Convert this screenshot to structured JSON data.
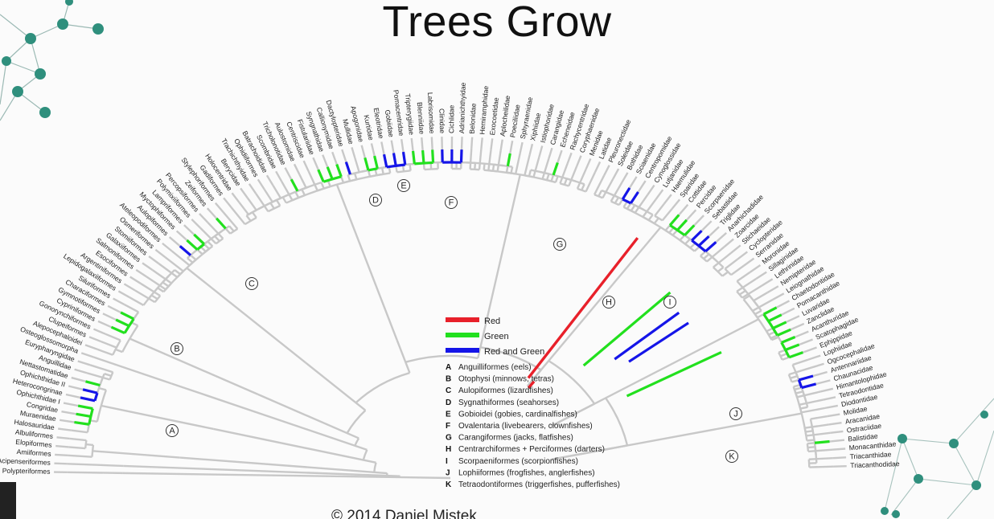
{
  "title": "Trees Grow",
  "footer": "© 2014 Daniel Mistek",
  "tree": {
    "leaves": [
      "Polypteriformes",
      "Acipenseriformes",
      "Amiiformes",
      "Elopiformes",
      "Albuliformes",
      "Halosauridae",
      "Muraenidae",
      "Congridae",
      "Ophichthidae I",
      "Heterocongrinae",
      "Ophichthidae II",
      "Nettastomatidae",
      "Anguillidae",
      "Eurypharyngidae",
      "Osteoglossomorpha",
      "Alepocephaloidei",
      "Clupeiformes",
      "Gonorynchiformes",
      "Cypriniformes",
      "Gymnotiformes",
      "Characiformes",
      "Siluriformes",
      "Lepidogalaxiiformes",
      "Argentiniformes",
      "Esociformes",
      "Salmoniformes",
      "Galaxiiformes",
      "Stomiiformes",
      "Osmeriformes",
      "Ateleopodiformes",
      "Aulopiformes",
      "Myctophiformes",
      "Lampriformes",
      "Polymixiiformes",
      "Percopsiformes",
      "Zeiformes",
      "Stylephoriformes",
      "Gadiformes",
      "Holocentridae",
      "Berycidae",
      "Trachichthyidae",
      "Ophidiiformes",
      "Batrachoididae",
      "Scombridae",
      "Tricholonotidae",
      "Aulostomidae",
      "Centriscidae",
      "Fistulariidae",
      "Syngnathidae",
      "Callionymidae",
      "Dactylopteridae",
      "Mullidae",
      "Apogonidae",
      "Kurtidae",
      "Eleotridae",
      "Gobiidae",
      "Pomacentridae",
      "Tripterygiidae",
      "Blenniidae",
      "Labrisomidae",
      "Clinidae",
      "Cichlidae",
      "Adrianichthyidae",
      "Belonidae",
      "Hemiramphidae",
      "Exocoetidae",
      "Aplocheilidae",
      "Poeciliidae",
      "Sphyraenidae",
      "Xiphiidae",
      "Istiophoridae",
      "Carangidae",
      "Echeneidae",
      "Rachycentridae",
      "Coryphaenidae",
      "Menidae",
      "Latidae",
      "Pleuronectidae",
      "Soleidae",
      "Bothidae",
      "Sciaenidae",
      "Centropomidae",
      "Cynoglossidae",
      "Lutjanidae",
      "Haemulidae",
      "Sparidae",
      "Cottidae",
      "Percidae",
      "Scorpaenidae",
      "Sebastidae",
      "Triglidae",
      "Anarhichadidae",
      "Zoarcidae",
      "Stichaeidae",
      "Cyclopteridae",
      "Serranidae",
      "Moronidae",
      "Sillaginidae",
      "Lethrinidae",
      "Nemipteridae",
      "Leiognathidae",
      "Chaetodontidae",
      "Pomacanthidae",
      "Luvaridae",
      "Zanclidae",
      "Acanthuridae",
      "Scatophagidae",
      "Ephippidae",
      "Lophiidae",
      "Ogcocephalidae",
      "Antennariidae",
      "Chaunacidae",
      "Himantolophidae",
      "Tetraodontidae",
      "Diodontidae",
      "Molidae",
      "Aracanidae",
      "Ostraciidae",
      "Balistidae",
      "Monacanthidae",
      "Triacanthidae",
      "Triacanthodidae"
    ],
    "clade_labels": [
      "A",
      "B",
      "C",
      "D",
      "E",
      "F",
      "G",
      "H",
      "I",
      "J",
      "K"
    ]
  },
  "legend": {
    "entries": [
      {
        "label": "Red",
        "color": "#e8202a"
      },
      {
        "label": "Green",
        "color": "#22e01e"
      },
      {
        "label": "Red and Green",
        "color": "#1515e8"
      }
    ],
    "branch_color": "#c8c8c8",
    "clades": [
      {
        "letter": "A",
        "name": "Anguilliformes (eels)"
      },
      {
        "letter": "B",
        "name": "Otophysi (minnows, tetras)"
      },
      {
        "letter": "C",
        "name": "Aulopiformes (lizardfishes)"
      },
      {
        "letter": "D",
        "name": "Sygnathiformes (seahorses)"
      },
      {
        "letter": "E",
        "name": "Gobioidei (gobies, cardinalfishes)"
      },
      {
        "letter": "F",
        "name": "Ovalentaria (livebearers, clownfishes)"
      },
      {
        "letter": "G",
        "name": "Carangiformes (jacks, flatfishes)"
      },
      {
        "letter": "H",
        "name": "Centrarchiformes + Perciformes (darters)"
      },
      {
        "letter": "I",
        "name": "Scorpaeniformes (scorpionfishes)"
      },
      {
        "letter": "J",
        "name": "Lophiiformes (frogfishes, anglerfishes)"
      },
      {
        "letter": "K",
        "name": "Tetraodontiformes (triggerfishes, pufferfishes)"
      }
    ]
  }
}
